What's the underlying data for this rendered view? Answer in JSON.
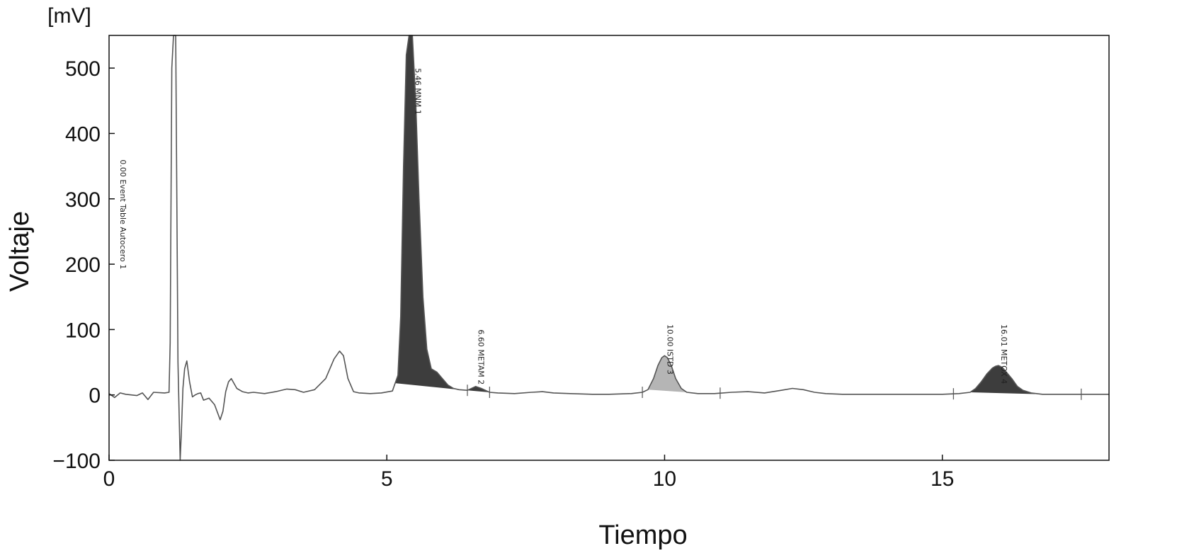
{
  "chart_data": {
    "type": "line",
    "xlabel": "Tiempo",
    "ylabel": "Voltaje",
    "y_unit": "[mV]",
    "xlim": [
      0,
      18
    ],
    "ylim": [
      -100,
      550
    ],
    "x_ticks": [
      0,
      5,
      10,
      15
    ],
    "x_tick_labels": [
      "0",
      "5",
      "10",
      "15"
    ],
    "y_ticks": [
      -100,
      0,
      100,
      200,
      300,
      400,
      500
    ],
    "y_tick_labels": [
      "−100",
      "0",
      "100",
      "200",
      "300",
      "400",
      "500"
    ],
    "grid": false,
    "legend": "none",
    "signal": {
      "x": [
        0,
        0.1,
        0.2,
        0.3,
        0.5,
        0.6,
        0.7,
        0.8,
        1.0,
        1.08,
        1.1,
        1.13,
        1.16,
        1.2,
        1.24,
        1.28,
        1.3,
        1.33,
        1.36,
        1.4,
        1.45,
        1.5,
        1.55,
        1.6,
        1.65,
        1.7,
        1.8,
        1.9,
        2.0,
        2.05,
        2.1,
        2.15,
        2.2,
        2.3,
        2.4,
        2.5,
        2.6,
        2.8,
        3.0,
        3.2,
        3.35,
        3.5,
        3.7,
        3.9,
        4.05,
        4.15,
        4.22,
        4.3,
        4.4,
        4.5,
        4.7,
        4.9,
        5.1,
        5.2,
        5.25,
        5.3,
        5.35,
        5.4,
        5.46,
        5.52,
        5.58,
        5.65,
        5.72,
        5.8,
        5.9,
        6.0,
        6.1,
        6.2,
        6.3,
        6.45,
        6.6,
        6.7,
        6.85,
        7.0,
        7.3,
        7.6,
        7.8,
        8.0,
        8.3,
        8.7,
        9.0,
        9.4,
        9.6,
        9.7,
        9.8,
        9.88,
        9.95,
        10.0,
        10.05,
        10.12,
        10.2,
        10.3,
        10.4,
        10.6,
        10.9,
        11.2,
        11.5,
        11.8,
        12.1,
        12.3,
        12.5,
        12.7,
        12.9,
        13.2,
        13.6,
        14.0,
        14.5,
        15.0,
        15.3,
        15.5,
        15.6,
        15.7,
        15.8,
        15.9,
        15.96,
        16.01,
        16.08,
        16.15,
        16.25,
        16.35,
        16.45,
        16.6,
        16.8,
        17.0,
        17.5,
        18.0
      ],
      "y": [
        2,
        -4,
        3,
        1,
        -1,
        3,
        -7,
        4,
        3,
        4,
        80,
        500,
        550,
        550,
        50,
        -100,
        -60,
        10,
        40,
        52,
        20,
        -3,
        0,
        2,
        3,
        -8,
        -5,
        -15,
        -38,
        -25,
        5,
        20,
        25,
        10,
        5,
        3,
        4,
        2,
        5,
        9,
        8,
        4,
        8,
        25,
        55,
        67,
        60,
        25,
        5,
        3,
        2,
        3,
        6,
        30,
        120,
        350,
        520,
        550,
        550,
        450,
        300,
        150,
        70,
        40,
        35,
        25,
        15,
        10,
        8,
        7,
        13,
        10,
        4,
        3,
        2,
        4,
        5,
        3,
        2,
        1,
        1,
        2,
        4,
        8,
        25,
        45,
        57,
        60,
        57,
        45,
        25,
        10,
        4,
        2,
        2,
        4,
        5,
        3,
        7,
        10,
        8,
        4,
        2,
        1,
        1,
        1,
        1,
        1,
        2,
        4,
        10,
        20,
        32,
        41,
        44,
        45,
        42,
        35,
        25,
        13,
        7,
        3,
        1,
        1,
        1,
        1
      ]
    },
    "shaded_peaks": [
      {
        "x_start": 5.15,
        "x_end": 6.3,
        "color": "#3d3d3d"
      },
      {
        "x_start": 6.4,
        "x_end": 6.85,
        "color": "#3d3d3d"
      },
      {
        "x_start": 9.7,
        "x_end": 10.4,
        "color": "#b5b5b5"
      },
      {
        "x_start": 15.5,
        "x_end": 16.8,
        "color": "#3d3d3d"
      }
    ],
    "annotations": [
      {
        "text": "0.00 Event Table Autocero 1",
        "x": 0.15,
        "y": 360
      },
      {
        "text": "5.46 MNM  1",
        "x": 5.46,
        "y": 500
      },
      {
        "text": "6.60 METAM  2",
        "x": 6.6,
        "y": 100
      },
      {
        "text": "10.00 ISTD  3",
        "x": 10.0,
        "y": 108
      },
      {
        "text": "16.01 METOX  4",
        "x": 16.01,
        "y": 108
      }
    ],
    "markers": [
      6.45,
      6.85,
      9.6,
      11.0,
      15.2,
      17.5
    ],
    "colors": {
      "line": "#555555",
      "frame": "#111111",
      "dark_fill": "#3d3d3d",
      "light_fill": "#b5b5b5"
    }
  }
}
